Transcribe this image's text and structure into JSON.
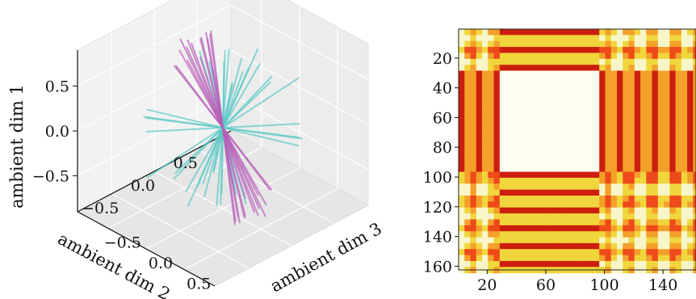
{
  "chart_data": [
    {
      "type": "scatter",
      "mark": "3d-line-segments",
      "title": "",
      "xlabel": "ambient dim 2",
      "ylabel": "ambient dim 3",
      "zlabel": "ambient dim 1",
      "xlim": [
        -0.9,
        0.9
      ],
      "ylim": [
        -0.9,
        0.9
      ],
      "zlim": [
        -0.9,
        0.9
      ],
      "x_ticks": [
        "0.5",
        "0.0",
        "−0.5"
      ],
      "y_ticks": [
        "−0.5",
        "0.0",
        "0.5"
      ],
      "z_ticks": [
        "0.5",
        "0.0",
        "−0.5"
      ],
      "x_tick_values": [
        0.5,
        0.0,
        -0.5
      ],
      "y_tick_values": [
        -0.5,
        0.0,
        0.5
      ],
      "z_tick_values": [
        0.5,
        0.0,
        -0.5
      ],
      "grid": true,
      "series": [
        {
          "color": "#5cc9c6",
          "description_key": "cyan",
          "segments_from_origin": [
            [
              0.55,
              -0.6,
              0.18
            ],
            [
              0.62,
              -0.45,
              0.25
            ],
            [
              0.7,
              -0.3,
              0.22
            ],
            [
              0.5,
              -0.7,
              0.1
            ],
            [
              0.68,
              -0.5,
              0.05
            ],
            [
              0.75,
              -0.2,
              0.1
            ],
            [
              0.6,
              -0.55,
              -0.05
            ],
            [
              0.4,
              -0.75,
              0.3
            ],
            [
              0.72,
              -0.35,
              0.35
            ],
            [
              0.58,
              -0.62,
              0.28
            ],
            [
              0.66,
              -0.4,
              0.15
            ],
            [
              0.45,
              -0.68,
              0.2
            ],
            [
              0.78,
              -0.25,
              0.0
            ],
            [
              0.52,
              -0.5,
              0.38
            ],
            [
              0.63,
              -0.58,
              -0.1
            ],
            [
              -0.55,
              0.6,
              -0.18
            ],
            [
              -0.62,
              0.45,
              -0.25
            ],
            [
              -0.7,
              0.3,
              -0.22
            ],
            [
              -0.5,
              0.7,
              -0.1
            ],
            [
              -0.68,
              0.5,
              -0.05
            ],
            [
              -0.75,
              0.2,
              -0.1
            ],
            [
              -0.6,
              0.55,
              0.05
            ],
            [
              -0.4,
              0.75,
              -0.3
            ],
            [
              -0.72,
              0.35,
              -0.35
            ],
            [
              -0.58,
              0.62,
              -0.28
            ],
            [
              -0.66,
              0.4,
              -0.15
            ],
            [
              -0.45,
              0.68,
              -0.2
            ],
            [
              -0.78,
              0.25,
              0.0
            ],
            [
              -0.52,
              0.5,
              -0.38
            ],
            [
              -0.63,
              0.58,
              0.1
            ],
            [
              0.3,
              0.7,
              0.05
            ],
            [
              0.2,
              0.78,
              0.15
            ],
            [
              0.35,
              0.6,
              -0.1
            ],
            [
              0.25,
              0.72,
              0.25
            ],
            [
              -0.3,
              -0.7,
              -0.05
            ],
            [
              -0.2,
              -0.78,
              -0.15
            ],
            [
              -0.35,
              -0.6,
              0.1
            ],
            [
              -0.25,
              -0.72,
              -0.25
            ],
            [
              0.8,
              0.1,
              0.2
            ],
            [
              -0.8,
              -0.1,
              -0.2
            ]
          ]
        },
        {
          "color": "#b65fb8",
          "description_key": "purple",
          "segments_from_origin": [
            [
              -0.2,
              -0.25,
              0.88
            ],
            [
              -0.1,
              -0.3,
              0.85
            ],
            [
              0.05,
              -0.35,
              0.8
            ],
            [
              -0.28,
              -0.15,
              0.82
            ],
            [
              0.0,
              -0.2,
              0.9
            ],
            [
              -0.15,
              -0.4,
              0.75
            ],
            [
              0.1,
              -0.28,
              0.86
            ],
            [
              -0.3,
              -0.3,
              0.7
            ],
            [
              0.15,
              -0.45,
              0.72
            ],
            [
              -0.05,
              -0.5,
              0.78
            ],
            [
              0.2,
              -0.38,
              0.8
            ],
            [
              -0.22,
              -0.05,
              0.87
            ],
            [
              0.08,
              -0.55,
              0.68
            ],
            [
              -0.35,
              -0.22,
              0.76
            ],
            [
              0.25,
              -0.5,
              0.7
            ],
            [
              0.2,
              0.25,
              -0.88
            ],
            [
              0.1,
              0.3,
              -0.85
            ],
            [
              -0.05,
              0.35,
              -0.8
            ],
            [
              0.28,
              0.15,
              -0.82
            ],
            [
              0.0,
              0.2,
              -0.9
            ],
            [
              0.15,
              0.4,
              -0.75
            ],
            [
              -0.1,
              0.28,
              -0.86
            ],
            [
              0.3,
              0.3,
              -0.7
            ],
            [
              -0.15,
              0.45,
              -0.72
            ],
            [
              0.05,
              0.5,
              -0.78
            ],
            [
              -0.2,
              0.38,
              -0.8
            ],
            [
              0.22,
              0.05,
              -0.87
            ],
            [
              -0.08,
              0.55,
              -0.68
            ],
            [
              0.35,
              0.22,
              -0.76
            ],
            [
              -0.25,
              0.5,
              -0.7
            ]
          ]
        }
      ]
    },
    {
      "type": "heatmap",
      "title": "",
      "xlabel": "",
      "ylabel": "",
      "size": 162,
      "x_ticks": [
        "20",
        "60",
        "100",
        "140"
      ],
      "x_tick_values": [
        20,
        60,
        100,
        140
      ],
      "y_ticks": [
        "20",
        "40",
        "60",
        "80",
        "100",
        "120",
        "140",
        "160"
      ],
      "y_tick_values": [
        20,
        40,
        60,
        80,
        100,
        120,
        140,
        160
      ],
      "colormap": [
        "#cc1f0e",
        "#ee4a1a",
        "#f4a02a",
        "#f0d63c",
        "#f8f6c8",
        "#fffef0"
      ],
      "blocks": [
        {
          "rows": [
            27,
            95
          ],
          "cols": [
            27,
            95
          ],
          "level": "high"
        },
        {
          "rows": [
            0,
            27
          ],
          "cols": [
            0,
            27
          ],
          "level": "mid"
        },
        {
          "rows": [
            95,
            162
          ],
          "cols": [
            95,
            162
          ],
          "level": "mid"
        }
      ]
    }
  ]
}
